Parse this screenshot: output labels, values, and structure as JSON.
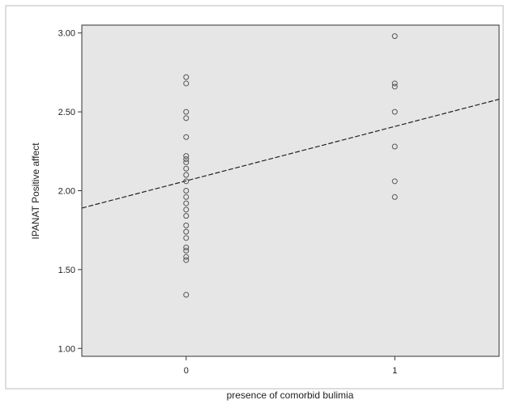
{
  "chart_data": {
    "type": "scatter",
    "title": "",
    "xlabel": "presence of comorbid bulimia",
    "ylabel": "IPANAT Positive affect",
    "x_categories": [
      "0",
      "1"
    ],
    "y_ticks": [
      "1.00",
      "1.50",
      "2.00",
      "2.50",
      "3.00"
    ],
    "xlim": [
      -0.5,
      1.5
    ],
    "ylim": [
      0.95,
      3.05
    ],
    "grid": false,
    "legend": "none",
    "points": [
      {
        "x": 0,
        "y": 2.72
      },
      {
        "x": 0,
        "y": 2.68
      },
      {
        "x": 0,
        "y": 2.5
      },
      {
        "x": 0,
        "y": 2.46
      },
      {
        "x": 0,
        "y": 2.34
      },
      {
        "x": 0,
        "y": 2.22
      },
      {
        "x": 0,
        "y": 2.2
      },
      {
        "x": 0,
        "y": 2.18
      },
      {
        "x": 0,
        "y": 2.14
      },
      {
        "x": 0,
        "y": 2.1
      },
      {
        "x": 0,
        "y": 2.06
      },
      {
        "x": 0,
        "y": 2.0
      },
      {
        "x": 0,
        "y": 1.96
      },
      {
        "x": 0,
        "y": 1.92
      },
      {
        "x": 0,
        "y": 1.88
      },
      {
        "x": 0,
        "y": 1.84
      },
      {
        "x": 0,
        "y": 1.78
      },
      {
        "x": 0,
        "y": 1.74
      },
      {
        "x": 0,
        "y": 1.7
      },
      {
        "x": 0,
        "y": 1.64
      },
      {
        "x": 0,
        "y": 1.62
      },
      {
        "x": 0,
        "y": 1.58
      },
      {
        "x": 0,
        "y": 1.56
      },
      {
        "x": 0,
        "y": 1.34
      },
      {
        "x": 1,
        "y": 2.98
      },
      {
        "x": 1,
        "y": 2.68
      },
      {
        "x": 1,
        "y": 2.66
      },
      {
        "x": 1,
        "y": 2.5
      },
      {
        "x": 1,
        "y": 2.28
      },
      {
        "x": 1,
        "y": 2.06
      },
      {
        "x": 1,
        "y": 1.96
      }
    ],
    "fit_line": {
      "x": [
        -0.5,
        1.5
      ],
      "y": [
        1.89,
        2.58
      ]
    },
    "colors": {
      "plot_background": "#e6e6e6",
      "marker": "#555555",
      "fit_line": "#222222",
      "frame": "#333333"
    }
  }
}
